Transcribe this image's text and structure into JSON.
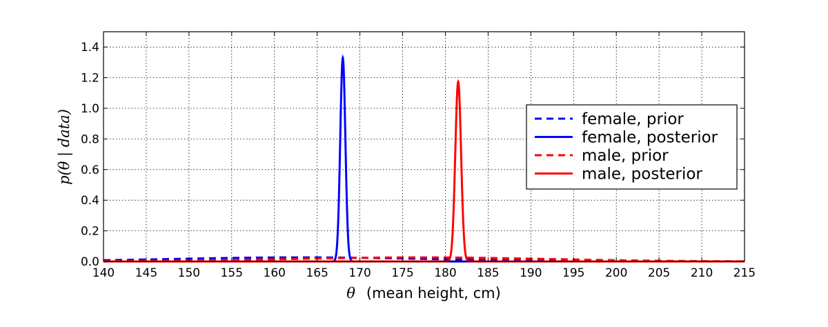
{
  "chart_data": {
    "type": "line",
    "xlabel_symbol": "θ",
    "xlabel": "(mean height, cm)",
    "ylabel_text": "p(θ | data)",
    "xlim": [
      140,
      215
    ],
    "ylim": [
      0,
      1.5
    ],
    "xticks": [
      140,
      145,
      150,
      155,
      160,
      165,
      170,
      175,
      180,
      185,
      190,
      195,
      200,
      205,
      210,
      215
    ],
    "xtick_labels": [
      "140",
      "145",
      "150",
      "155",
      "160",
      "165",
      "170",
      "175",
      "180",
      "185",
      "190",
      "195",
      "200",
      "205",
      "210",
      "215"
    ],
    "yticks": [
      0.0,
      0.2,
      0.4,
      0.6,
      0.8,
      1.0,
      1.2,
      1.4
    ],
    "ytick_labels": [
      "0.0",
      "0.2",
      "0.4",
      "0.6",
      "0.8",
      "1.0",
      "1.2",
      "1.4"
    ],
    "grid": true,
    "legend_position": "right",
    "series": [
      {
        "name": "female, prior",
        "color": "#0000ff",
        "style": "dashed",
        "distribution": "normal",
        "mean": 163,
        "std": 15
      },
      {
        "name": "female, posterior",
        "color": "#0000ff",
        "style": "solid",
        "distribution": "normal",
        "mean": 168,
        "std": 0.3
      },
      {
        "name": "male, prior",
        "color": "#ff0000",
        "style": "dashed",
        "distribution": "normal",
        "mean": 177,
        "std": 15
      },
      {
        "name": "male, posterior",
        "color": "#ff0000",
        "style": "solid",
        "distribution": "normal",
        "mean": 181.5,
        "std": 0.34
      }
    ]
  }
}
